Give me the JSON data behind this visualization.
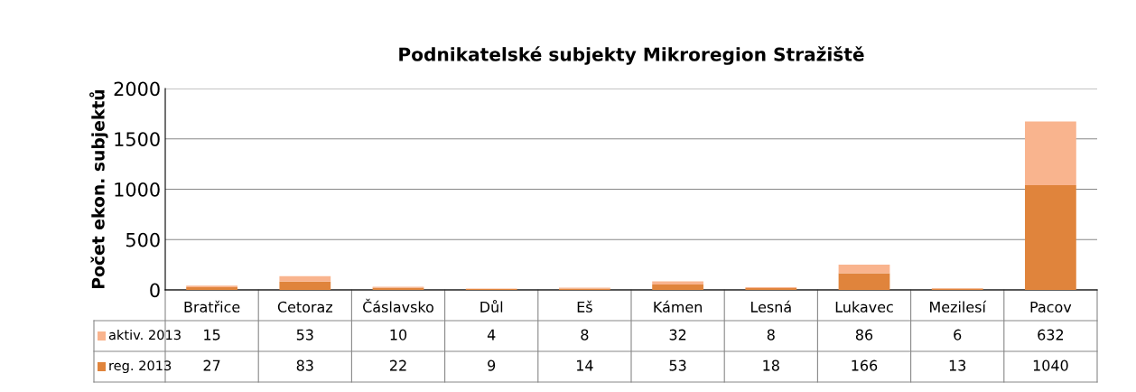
{
  "chart_data": {
    "type": "bar",
    "title": "Podnikatelské subjekty Mikroregion Stražiště",
    "ylabel": "Počet ekon. subjektů",
    "categories": [
      "Bratřice",
      "Cetoraz",
      "Čáslavsko",
      "Důl",
      "Eš",
      "Kámen",
      "Lesná",
      "Lukavec",
      "Mezilesí",
      "Pacov"
    ],
    "series": [
      {
        "name": "reg. 2013",
        "color": "#e0843c",
        "values": [
          27,
          83,
          22,
          9,
          14,
          53,
          18,
          166,
          13,
          1040
        ]
      },
      {
        "name": "aktiv. 2013",
        "color": "#f9b48e",
        "values": [
          15,
          53,
          10,
          4,
          8,
          32,
          8,
          86,
          6,
          632
        ]
      }
    ],
    "stacked": true,
    "ylim": [
      0,
      2000
    ],
    "yticks": [
      0,
      500,
      1000,
      1500,
      2000
    ],
    "grid": "y",
    "legend": "left",
    "data_labels": true
  }
}
